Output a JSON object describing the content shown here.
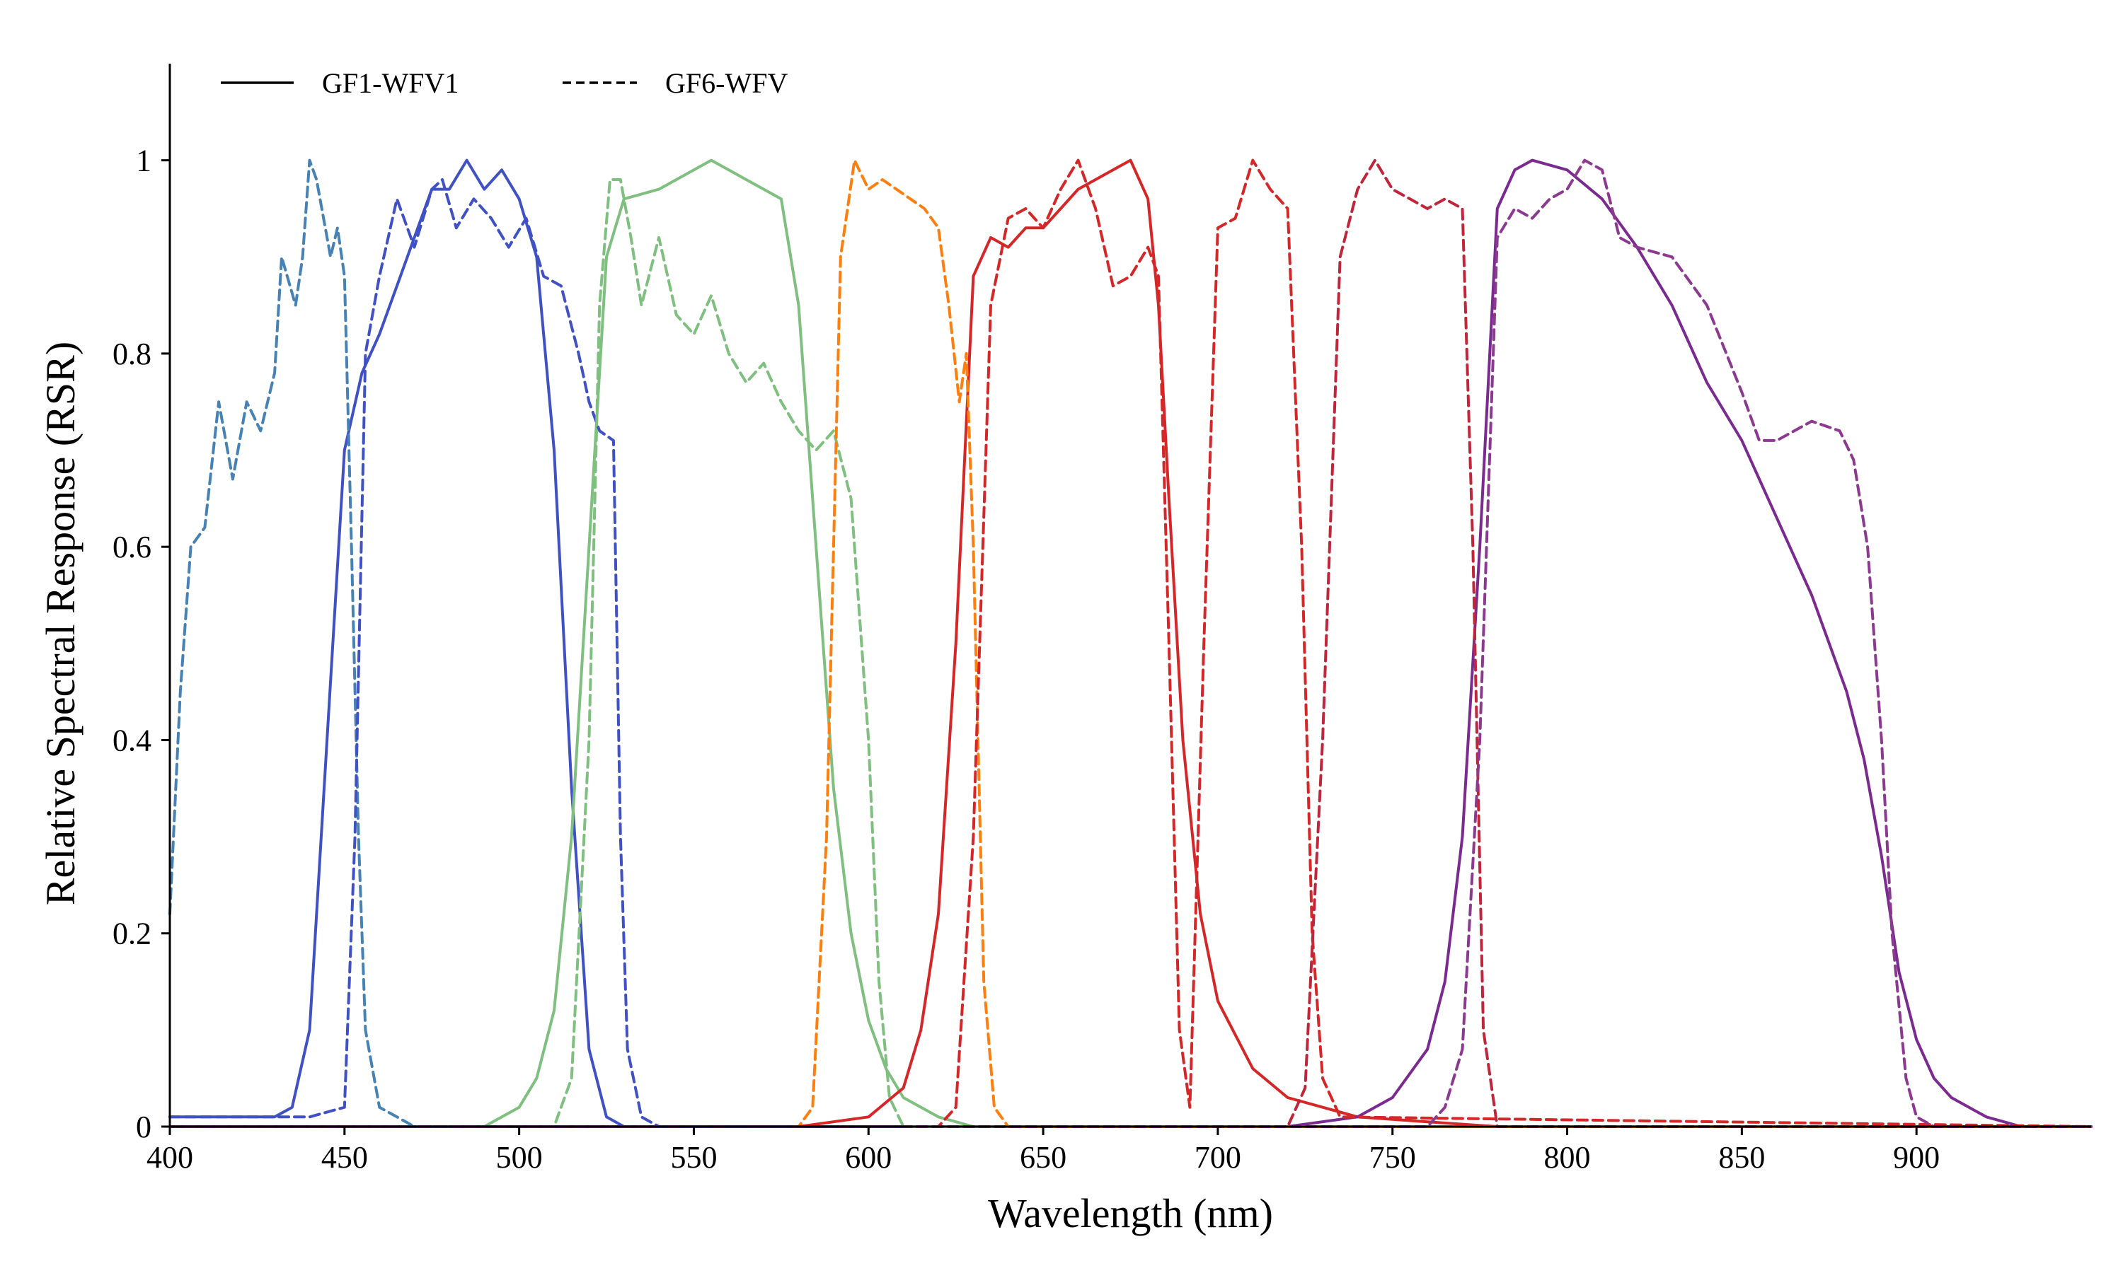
{
  "chart_data": {
    "type": "line",
    "title": "",
    "xlabel": "Wavelength (nm)",
    "ylabel": "Relative Spectral Response (RSR)",
    "xlim": [
      400,
      950
    ],
    "ylim": [
      0,
      1.1
    ],
    "x_ticks": [
      400,
      450,
      500,
      550,
      600,
      650,
      700,
      750,
      800,
      850,
      900
    ],
    "x_tick_labels": [
      "400",
      "450",
      "500",
      "550",
      "600",
      "650",
      "700",
      "750",
      "800",
      "850",
      "900"
    ],
    "y_ticks": [
      0,
      0.2,
      0.4,
      0.6,
      0.8,
      1
    ],
    "y_tick_labels": [
      "0",
      "0.2",
      "0.4",
      "0.6",
      "0.8",
      "1"
    ],
    "grid": false,
    "legend": {
      "position": "top-left",
      "entries": [
        {
          "label": "GF1-WFV1",
          "style": "solid"
        },
        {
          "label": "GF6-WFV",
          "style": "dashed"
        }
      ]
    },
    "series": [
      {
        "sensor": "GF1-WFV1",
        "style": "solid",
        "color": "#3f51c4",
        "x": [
          400,
          430,
          435,
          440,
          445,
          450,
          455,
          460,
          465,
          470,
          475,
          480,
          485,
          490,
          495,
          500,
          505,
          510,
          515,
          520,
          525,
          530,
          535,
          950
        ],
        "y": [
          0.01,
          0.01,
          0.02,
          0.1,
          0.4,
          0.7,
          0.78,
          0.82,
          0.87,
          0.92,
          0.97,
          0.97,
          1.0,
          0.97,
          0.99,
          0.96,
          0.9,
          0.7,
          0.35,
          0.08,
          0.01,
          0.0,
          0.0,
          0.0
        ]
      },
      {
        "sensor": "GF1-WFV1",
        "style": "solid",
        "color": "#7fbf7f",
        "x": [
          400,
          490,
          500,
          505,
          510,
          515,
          520,
          525,
          530,
          540,
          550,
          555,
          560,
          565,
          570,
          575,
          580,
          585,
          590,
          595,
          600,
          605,
          610,
          620,
          630,
          950
        ],
        "y": [
          0.0,
          0.0,
          0.02,
          0.05,
          0.12,
          0.3,
          0.6,
          0.9,
          0.96,
          0.97,
          0.99,
          1.0,
          0.99,
          0.98,
          0.97,
          0.96,
          0.85,
          0.6,
          0.35,
          0.2,
          0.11,
          0.06,
          0.03,
          0.01,
          0.0,
          0.0
        ]
      },
      {
        "sensor": "GF1-WFV1",
        "style": "solid",
        "color": "#d62728",
        "x": [
          400,
          580,
          600,
          610,
          615,
          620,
          625,
          630,
          635,
          640,
          645,
          650,
          655,
          660,
          665,
          670,
          675,
          680,
          683,
          686,
          690,
          695,
          700,
          710,
          720,
          740,
          760,
          780,
          950
        ],
        "y": [
          0.0,
          0.0,
          0.01,
          0.04,
          0.1,
          0.22,
          0.5,
          0.88,
          0.92,
          0.91,
          0.93,
          0.93,
          0.95,
          0.97,
          0.98,
          0.99,
          1.0,
          0.96,
          0.85,
          0.65,
          0.4,
          0.22,
          0.13,
          0.06,
          0.03,
          0.01,
          0.005,
          0.0,
          0.0
        ]
      },
      {
        "sensor": "GF1-WFV1",
        "style": "solid",
        "color": "#7b2a8f",
        "x": [
          400,
          720,
          740,
          750,
          760,
          765,
          770,
          775,
          780,
          785,
          790,
          800,
          810,
          820,
          830,
          840,
          850,
          860,
          870,
          880,
          885,
          890,
          895,
          900,
          905,
          910,
          920,
          930,
          950
        ],
        "y": [
          0.0,
          0.0,
          0.01,
          0.03,
          0.08,
          0.15,
          0.3,
          0.6,
          0.95,
          0.99,
          1.0,
          0.99,
          0.96,
          0.91,
          0.85,
          0.77,
          0.71,
          0.63,
          0.55,
          0.45,
          0.38,
          0.28,
          0.16,
          0.09,
          0.05,
          0.03,
          0.01,
          0.0,
          0.0
        ]
      },
      {
        "sensor": "GF6-WFV",
        "style": "dashed",
        "color": "#4682b4",
        "x": [
          400,
          403,
          406,
          410,
          414,
          418,
          422,
          426,
          430,
          432,
          436,
          438,
          440,
          442,
          444,
          446,
          448,
          450,
          452,
          454,
          456,
          460,
          465,
          470,
          480
        ],
        "y": [
          0.22,
          0.45,
          0.6,
          0.62,
          0.75,
          0.67,
          0.75,
          0.72,
          0.78,
          0.9,
          0.85,
          0.9,
          1.0,
          0.98,
          0.94,
          0.9,
          0.93,
          0.88,
          0.6,
          0.3,
          0.1,
          0.02,
          0.01,
          0.0,
          0.0
        ]
      },
      {
        "sensor": "GF6-WFV",
        "style": "dashed",
        "color": "#3f51c4",
        "x": [
          400,
          440,
          450,
          453,
          456,
          460,
          465,
          470,
          475,
          478,
          482,
          487,
          492,
          497,
          502,
          507,
          512,
          517,
          520,
          523,
          527,
          529,
          531,
          535,
          540,
          950
        ],
        "y": [
          0.01,
          0.01,
          0.02,
          0.3,
          0.8,
          0.88,
          0.96,
          0.91,
          0.97,
          0.98,
          0.93,
          0.96,
          0.94,
          0.91,
          0.94,
          0.88,
          0.87,
          0.8,
          0.75,
          0.72,
          0.71,
          0.3,
          0.08,
          0.01,
          0.0,
          0.0
        ]
      },
      {
        "sensor": "GF6-WFV",
        "style": "dashed",
        "color": "#7fbf7f",
        "x": [
          400,
          510,
          515,
          520,
          523,
          526,
          529,
          532,
          535,
          540,
          545,
          550,
          555,
          560,
          565,
          570,
          575,
          580,
          585,
          590,
          595,
          600,
          603,
          606,
          610,
          950
        ],
        "y": [
          0.0,
          0.0,
          0.05,
          0.4,
          0.85,
          0.98,
          0.98,
          0.92,
          0.85,
          0.92,
          0.84,
          0.82,
          0.86,
          0.8,
          0.77,
          0.79,
          0.75,
          0.72,
          0.7,
          0.72,
          0.65,
          0.4,
          0.15,
          0.03,
          0.0,
          0.0
        ]
      },
      {
        "sensor": "GF6-WFV",
        "style": "dashed",
        "color": "#ff7f0e",
        "x": [
          400,
          580,
          584,
          588,
          592,
          596,
          600,
          604,
          608,
          612,
          616,
          620,
          623,
          626,
          628,
          630,
          633,
          636,
          640,
          950
        ],
        "y": [
          0.0,
          0.0,
          0.02,
          0.3,
          0.9,
          1.0,
          0.97,
          0.98,
          0.97,
          0.96,
          0.95,
          0.93,
          0.85,
          0.75,
          0.8,
          0.6,
          0.15,
          0.02,
          0.0,
          0.0
        ]
      },
      {
        "sensor": "GF6-WFV",
        "style": "dashed",
        "color": "#d62728",
        "x": [
          400,
          620,
          625,
          630,
          635,
          640,
          645,
          650,
          655,
          660,
          665,
          670,
          675,
          680,
          683,
          686,
          689,
          692,
          696,
          700,
          705,
          710,
          715,
          720,
          724,
          727,
          730,
          735,
          950
        ],
        "y": [
          0.0,
          0.0,
          0.02,
          0.3,
          0.85,
          0.94,
          0.95,
          0.93,
          0.97,
          1.0,
          0.95,
          0.87,
          0.88,
          0.91,
          0.88,
          0.5,
          0.1,
          0.02,
          0.5,
          0.93,
          0.94,
          1.0,
          0.97,
          0.95,
          0.6,
          0.2,
          0.05,
          0.01,
          0.0
        ]
      },
      {
        "sensor": "GF6-WFV",
        "style": "dashed",
        "color": "#c0253a",
        "x": [
          400,
          720,
          725,
          730,
          735,
          740,
          745,
          750,
          755,
          760,
          765,
          770,
          773,
          776,
          780,
          950
        ],
        "y": [
          0.0,
          0.0,
          0.04,
          0.4,
          0.9,
          0.97,
          1.0,
          0.97,
          0.96,
          0.95,
          0.96,
          0.95,
          0.6,
          0.1,
          0.0,
          0.0
        ]
      },
      {
        "sensor": "GF6-WFV",
        "style": "dashed",
        "color": "#8b3a8f",
        "x": [
          400,
          760,
          765,
          770,
          775,
          780,
          785,
          790,
          795,
          800,
          805,
          810,
          815,
          820,
          830,
          840,
          850,
          855,
          860,
          870,
          878,
          882,
          886,
          890,
          893,
          897,
          900,
          905,
          910,
          950
        ],
        "y": [
          0.0,
          0.0,
          0.02,
          0.08,
          0.4,
          0.92,
          0.95,
          0.94,
          0.96,
          0.97,
          1.0,
          0.99,
          0.92,
          0.91,
          0.9,
          0.85,
          0.76,
          0.71,
          0.71,
          0.73,
          0.72,
          0.69,
          0.6,
          0.4,
          0.2,
          0.05,
          0.01,
          0.0,
          0.0,
          0.0
        ]
      }
    ]
  }
}
